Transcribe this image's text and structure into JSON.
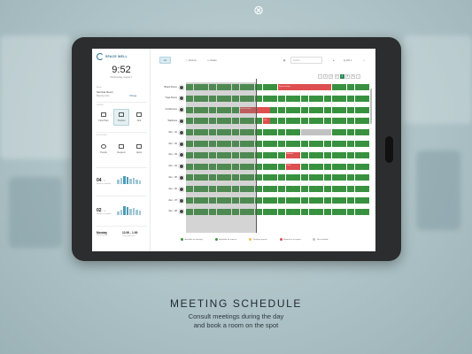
{
  "colors": {
    "free": "#38913f",
    "pending": "#f1c245",
    "booked": "#de4f4f",
    "unavailable": "#c2c2c2",
    "accent": "#2d6e8f"
  },
  "caption": {
    "title": "MEETING SCHEDULE",
    "line1": "Consult meetings during the day",
    "line2": "and book a room on the spot"
  },
  "sidebar": {
    "logo": "SPACE WELL",
    "time": "9:52",
    "date": "Wednesday, August 7",
    "room_label": "Room",
    "room_name": "Seminar Room",
    "room_sub": "Meeting room",
    "room_link": "Change",
    "nav_label": "VIEWS",
    "nav": [
      {
        "label": "Floor Plan",
        "icon": "floor-plan-icon"
      },
      {
        "label": "Timeline",
        "icon": "timeline-icon"
      },
      {
        "label": "Grid",
        "icon": "grid-icon"
      }
    ],
    "manage_label": "BOOKING",
    "manage": [
      {
        "label": "People",
        "icon": "people-icon"
      },
      {
        "label": "Request",
        "icon": "request-icon"
      },
      {
        "label": "Alerts",
        "icon": "alert-icon"
      }
    ],
    "stats": [
      {
        "value": "04",
        "unit": "/ 12",
        "sub": "Rooms available"
      },
      {
        "value": "02",
        "unit": "/ 12",
        "sub": "Rooms occupied"
      }
    ],
    "day": "Monday",
    "day_sub": "Booking day",
    "hours": "12:00 - 1:00",
    "hours_sub": "Time selected"
  },
  "toolbar": {
    "all": "All",
    "rooms": "Rooms",
    "desks": "Desks",
    "search_placeholder": "Search",
    "language": "EN"
  },
  "pager": [
    "‹",
    "1",
    "2",
    "3",
    "4",
    "5",
    "6",
    "›"
  ],
  "pager_active": "4",
  "rooms": [
    {
      "name": "Board Room"
    },
    {
      "name": "Yoga Room"
    },
    {
      "name": "Conference"
    },
    {
      "name": "Wellness"
    },
    {
      "name": "Zen - 01"
    },
    {
      "name": "Zen - 02"
    },
    {
      "name": "Zen - 03"
    },
    {
      "name": "Zen - 04"
    },
    {
      "name": "Zen - 05"
    },
    {
      "name": "Zen - 06"
    },
    {
      "name": "Zen - 07"
    },
    {
      "name": "Zen - 08"
    }
  ],
  "events": [
    {
      "row": 0,
      "start": 12,
      "end": 19,
      "type": "booked",
      "label": "Project meeting"
    },
    {
      "row": 2,
      "start": 7,
      "end": 11,
      "type": "booked",
      "label": "Internal review"
    },
    {
      "row": 3,
      "start": 10,
      "end": 11,
      "type": "booked",
      "label": "Call"
    },
    {
      "row": 4,
      "start": 15,
      "end": 19,
      "type": "unavailable",
      "label": ""
    },
    {
      "row": 6,
      "start": 13,
      "end": 15,
      "type": "booked",
      "label": "Interview"
    },
    {
      "row": 7,
      "start": 13,
      "end": 15,
      "type": "booked",
      "label": "Demo"
    }
  ],
  "legend": [
    {
      "label": "Available for booking",
      "type": "free"
    },
    {
      "label": "Available for request",
      "type": "free"
    },
    {
      "label": "Pending request",
      "type": "pending"
    },
    {
      "label": "Booked or occupied",
      "type": "booked"
    },
    {
      "label": "Not available",
      "type": "unavailable"
    }
  ]
}
